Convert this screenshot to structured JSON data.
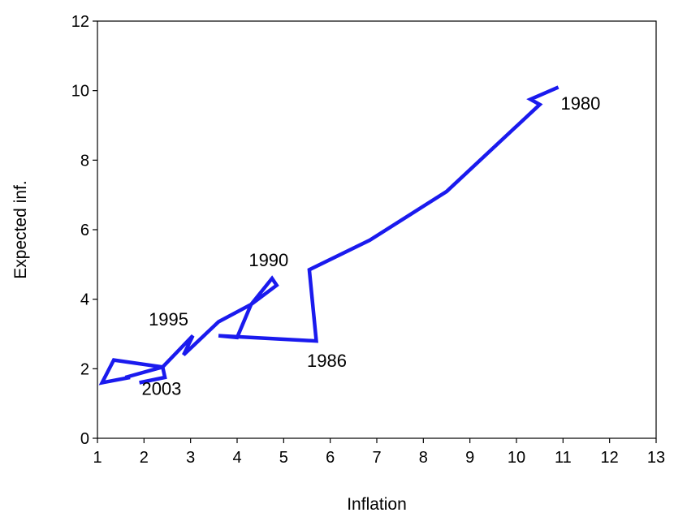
{
  "chart_data": {
    "type": "line",
    "title": "",
    "xlabel": "Inflation",
    "ylabel": "Expected inf.",
    "xlim": [
      1,
      13
    ],
    "ylim": [
      0,
      12
    ],
    "xticks": [
      1,
      2,
      3,
      4,
      5,
      6,
      7,
      8,
      9,
      10,
      11,
      12,
      13
    ],
    "yticks": [
      0,
      2,
      4,
      6,
      8,
      10,
      12
    ],
    "grid": false,
    "legend": "none",
    "line_color": "#1a1aee",
    "series": [
      {
        "points": [
          [
            10.9,
            10.1
          ],
          [
            10.3,
            9.75
          ],
          [
            10.5,
            9.6
          ],
          [
            8.5,
            7.1
          ],
          [
            6.85,
            5.7
          ],
          [
            5.55,
            4.85
          ],
          [
            5.7,
            2.8
          ],
          [
            3.6,
            2.95
          ],
          [
            4.0,
            2.9
          ],
          [
            4.3,
            3.85
          ],
          [
            4.85,
            4.4
          ],
          [
            4.75,
            4.6
          ],
          [
            4.3,
            3.85
          ],
          [
            3.6,
            3.35
          ],
          [
            2.85,
            2.4
          ],
          [
            3.05,
            2.95
          ],
          [
            2.4,
            2.05
          ],
          [
            1.35,
            2.25
          ],
          [
            1.1,
            1.6
          ],
          [
            1.7,
            1.75
          ],
          [
            1.6,
            1.75
          ],
          [
            2.4,
            2.05
          ],
          [
            2.45,
            1.75
          ],
          [
            1.9,
            1.6
          ]
        ]
      }
    ],
    "annotations": [
      {
        "text": "1980",
        "x": 10.95,
        "y": 9.45
      },
      {
        "text": "1990",
        "x": 4.25,
        "y": 4.95
      },
      {
        "text": "1986",
        "x": 5.5,
        "y": 2.05
      },
      {
        "text": "1995",
        "x": 2.1,
        "y": 3.25
      },
      {
        "text": "2003",
        "x": 1.95,
        "y": 1.25
      }
    ]
  }
}
